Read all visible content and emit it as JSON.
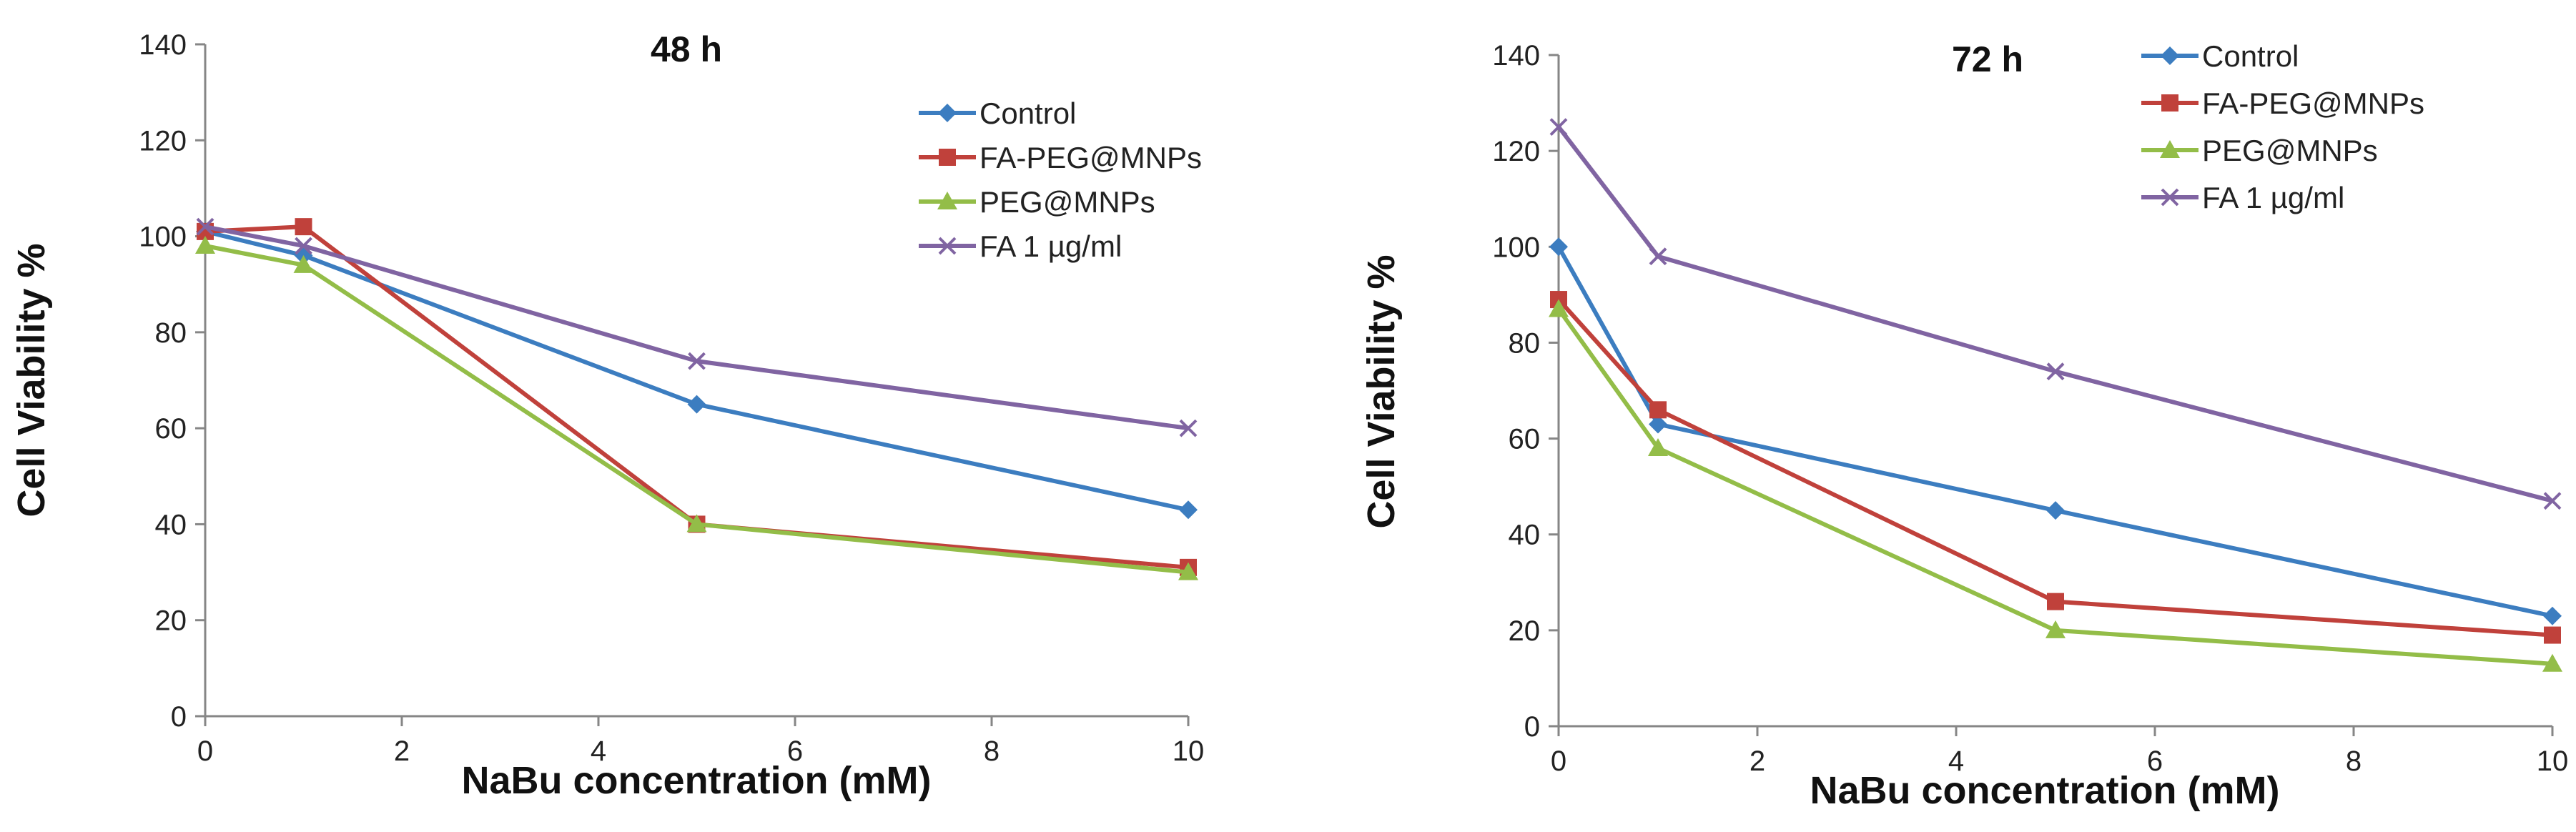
{
  "chart_data": [
    {
      "type": "line",
      "title": "48 h",
      "xlabel": "NaBu concentration (mM)",
      "ylabel": "Cell Viability %",
      "xlim": [
        0,
        10
      ],
      "ylim": [
        0,
        140
      ],
      "x_ticks": [
        0,
        2,
        4,
        6,
        8,
        10
      ],
      "y_ticks": [
        0,
        20,
        40,
        60,
        80,
        100,
        120,
        140
      ],
      "grid": false,
      "legend": "top-right",
      "x": [
        0,
        1,
        5,
        10
      ],
      "series": [
        {
          "name": "Control",
          "color": "#3c7dc0",
          "marker": "diamond",
          "values": [
            101,
            96,
            65,
            43
          ]
        },
        {
          "name": "FA-PEG@MNPs",
          "color": "#c0413b",
          "marker": "square",
          "values": [
            101,
            102,
            40,
            31
          ]
        },
        {
          "name": "PEG@MNPs",
          "color": "#93bd48",
          "marker": "triangle",
          "values": [
            98,
            94,
            40,
            30
          ]
        },
        {
          "name": "FA 1 µg/ml",
          "color": "#8064a2",
          "marker": "x",
          "values": [
            102,
            98,
            74,
            60
          ]
        }
      ]
    },
    {
      "type": "line",
      "title": "72 h",
      "xlabel": "NaBu  concentration (mM)",
      "ylabel": "Cell Viability %",
      "xlim": [
        0,
        10
      ],
      "ylim": [
        0,
        140
      ],
      "x_ticks": [
        0,
        2,
        4,
        6,
        8,
        10
      ],
      "y_ticks": [
        0,
        20,
        40,
        60,
        80,
        100,
        120,
        140
      ],
      "grid": false,
      "legend": "top-right",
      "x": [
        0,
        1,
        5,
        10
      ],
      "series": [
        {
          "name": "Control",
          "color": "#3c7dc0",
          "marker": "diamond",
          "values": [
            100,
            63,
            45,
            23
          ]
        },
        {
          "name": "FA-PEG@MNPs",
          "color": "#c0413b",
          "marker": "square",
          "values": [
            89,
            66,
            26,
            19
          ]
        },
        {
          "name": "PEG@MNPs",
          "color": "#93bd48",
          "marker": "triangle",
          "values": [
            87,
            58,
            20,
            13
          ]
        },
        {
          "name": "FA 1 µg/ml",
          "color": "#8064a2",
          "marker": "x",
          "values": [
            125,
            98,
            74,
            47
          ]
        }
      ]
    }
  ]
}
